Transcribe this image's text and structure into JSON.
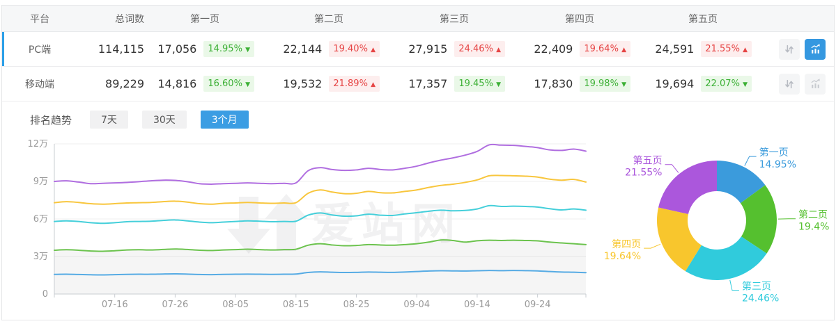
{
  "colors": {
    "accent_blue": "#2b9fe8",
    "tab_active_bg": "#3b9de3",
    "up_color": "#e64545",
    "up_bg": "#fdeeee",
    "down_color": "#3cb035",
    "down_bg": "#eaf8e8",
    "grid_line": "#efefef",
    "axis_line": "#c9cdd2",
    "axis_text": "#999999",
    "area_fill": "rgba(0,0,0,0.04)"
  },
  "table": {
    "columns": [
      "平台",
      "总词数",
      "第一页",
      "第二页",
      "第三页",
      "第四页",
      "第五页"
    ],
    "rows": [
      {
        "platform": "PC端",
        "total": "114,115",
        "selected": true,
        "chart_active": true,
        "pages": [
          {
            "value": "17,056",
            "pct": "14.95%",
            "dir": "down"
          },
          {
            "value": "22,144",
            "pct": "19.40%",
            "dir": "up"
          },
          {
            "value": "27,915",
            "pct": "24.46%",
            "dir": "up"
          },
          {
            "value": "22,409",
            "pct": "19.64%",
            "dir": "up"
          },
          {
            "value": "24,591",
            "pct": "21.55%",
            "dir": "up"
          }
        ]
      },
      {
        "platform": "移动端",
        "total": "89,229",
        "selected": false,
        "chart_active": false,
        "pages": [
          {
            "value": "14,816",
            "pct": "16.60%",
            "dir": "down"
          },
          {
            "value": "19,532",
            "pct": "21.89%",
            "dir": "up"
          },
          {
            "value": "17,357",
            "pct": "19.45%",
            "dir": "down"
          },
          {
            "value": "17,830",
            "pct": "19.98%",
            "dir": "down"
          },
          {
            "value": "19,694",
            "pct": "22.07%",
            "dir": "down"
          }
        ]
      }
    ]
  },
  "trend": {
    "title": "排名趋势",
    "tabs": [
      {
        "label": "7天",
        "active": false
      },
      {
        "label": "30天",
        "active": false
      },
      {
        "label": "3个月",
        "active": true
      }
    ],
    "watermark": "爱站网"
  },
  "chart_data": [
    {
      "type": "line",
      "title": "排名趋势（3个月，堆叠累计词数）",
      "unit": "万",
      "ylim": [
        0,
        12
      ],
      "y_ticks": [
        {
          "value": 0,
          "label": "0"
        },
        {
          "value": 3,
          "label": "3万"
        },
        {
          "value": 6,
          "label": "6万"
        },
        {
          "value": 9,
          "label": "9万"
        },
        {
          "value": 12,
          "label": "12万"
        }
      ],
      "x_start": "07-06",
      "x_step_days": 2,
      "x_tick_indices": [
        5,
        10,
        15,
        20,
        25,
        30,
        35,
        40
      ],
      "x_tick_labels": [
        "07-16",
        "07-26",
        "08-05",
        "08-15",
        "08-25",
        "09-04",
        "09-14",
        "09-24"
      ],
      "grid": true,
      "legend": "none",
      "series": [
        {
          "name": "第一页",
          "color": "#56abe4",
          "area": false,
          "values": [
            1.57,
            1.58,
            1.56,
            1.54,
            1.53,
            1.55,
            1.57,
            1.58,
            1.58,
            1.6,
            1.61,
            1.59,
            1.56,
            1.55,
            1.57,
            1.58,
            1.59,
            1.58,
            1.57,
            1.58,
            1.6,
            1.72,
            1.77,
            1.74,
            1.72,
            1.73,
            1.76,
            1.74,
            1.73,
            1.76,
            1.8,
            1.84,
            1.86,
            1.85,
            1.84,
            1.86,
            1.88,
            1.87,
            1.88,
            1.87,
            1.85,
            1.8,
            1.76,
            1.74,
            1.71
          ]
        },
        {
          "name": "第二页",
          "color": "#6cc34e",
          "area": true,
          "values": [
            3.5,
            3.54,
            3.5,
            3.44,
            3.42,
            3.46,
            3.52,
            3.54,
            3.52,
            3.56,
            3.6,
            3.56,
            3.5,
            3.48,
            3.52,
            3.55,
            3.58,
            3.55,
            3.52,
            3.55,
            3.58,
            3.9,
            4.02,
            3.92,
            3.86,
            3.88,
            3.95,
            3.92,
            3.9,
            3.95,
            4.02,
            4.15,
            4.32,
            4.28,
            4.15,
            4.26,
            4.3,
            4.28,
            4.3,
            4.28,
            4.25,
            4.15,
            4.08,
            4.02,
            3.95
          ]
        },
        {
          "name": "第三页",
          "color": "#45cfda",
          "area": false,
          "values": [
            5.8,
            5.85,
            5.8,
            5.7,
            5.65,
            5.7,
            5.78,
            5.8,
            5.82,
            5.88,
            5.92,
            5.85,
            5.75,
            5.7,
            5.75,
            5.8,
            5.85,
            5.82,
            5.78,
            5.8,
            5.82,
            6.3,
            6.48,
            6.32,
            6.22,
            6.25,
            6.38,
            6.3,
            6.28,
            6.4,
            6.5,
            6.62,
            6.7,
            6.65,
            6.68,
            6.8,
            7.06,
            7.0,
            7.02,
            7.0,
            6.95,
            6.82,
            6.72,
            6.8,
            6.7
          ]
        },
        {
          "name": "第四页",
          "color": "#f8c63d",
          "area": false,
          "values": [
            7.3,
            7.38,
            7.32,
            7.22,
            7.18,
            7.22,
            7.28,
            7.3,
            7.32,
            7.38,
            7.42,
            7.35,
            7.22,
            7.18,
            7.25,
            7.28,
            7.32,
            7.28,
            7.25,
            7.28,
            7.3,
            8.05,
            8.32,
            8.15,
            8.02,
            8.05,
            8.2,
            8.1,
            8.08,
            8.2,
            8.32,
            8.52,
            8.68,
            8.78,
            8.92,
            9.12,
            9.45,
            9.47,
            9.45,
            9.42,
            9.35,
            9.18,
            9.1,
            9.16,
            8.95
          ]
        },
        {
          "name": "第五页",
          "color": "#b06ee0",
          "area": false,
          "values": [
            9.0,
            9.05,
            8.95,
            8.82,
            8.85,
            8.88,
            8.92,
            8.98,
            9.05,
            9.1,
            9.08,
            8.98,
            8.82,
            8.78,
            8.82,
            8.85,
            8.88,
            8.85,
            8.82,
            8.85,
            8.88,
            9.85,
            10.1,
            9.95,
            9.88,
            9.92,
            10.05,
            9.95,
            9.92,
            10.05,
            10.22,
            10.48,
            10.7,
            10.88,
            11.1,
            11.4,
            11.92,
            11.9,
            11.88,
            11.8,
            11.7,
            11.52,
            11.48,
            11.58,
            11.42
          ]
        }
      ]
    },
    {
      "type": "pie",
      "donut": true,
      "inner_radius_ratio": 0.49,
      "start_angle_deg": 0,
      "clockwise": true,
      "slices": [
        {
          "name": "第一页",
          "value": 14.95,
          "label": "14.95%",
          "color": "#3b9bdc"
        },
        {
          "name": "第二页",
          "value": 19.4,
          "label": "19.4%",
          "color": "#55c02f"
        },
        {
          "name": "第三页",
          "value": 24.46,
          "label": "24.46%",
          "color": "#30cbdc"
        },
        {
          "name": "第四页",
          "value": 19.64,
          "label": "19.64%",
          "color": "#f8c62d"
        },
        {
          "name": "第五页",
          "value": 21.55,
          "label": "21.55%",
          "color": "#ab57dc"
        }
      ]
    }
  ]
}
